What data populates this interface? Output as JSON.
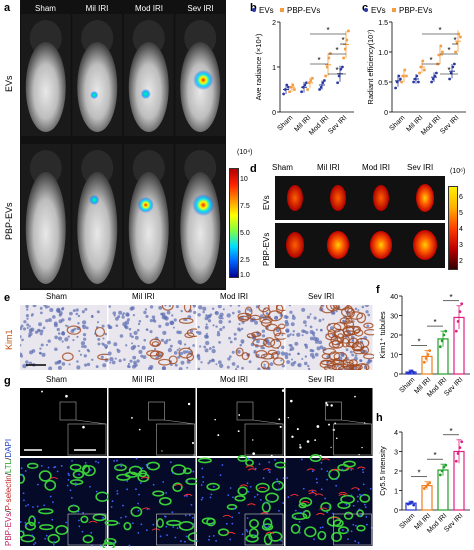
{
  "panels": {
    "a": {
      "label": "a",
      "columns": [
        "Sham",
        "Mil IRI",
        "Mod IRI",
        "Sev IRI"
      ],
      "rows": [
        "EVs",
        "PBP-EVs"
      ],
      "colorbar": {
        "unit": "(10⁴)",
        "ticks": [
          "10",
          "7.5",
          "5.0",
          "2.5",
          "1.0"
        ]
      }
    },
    "d": {
      "label": "d",
      "columns": [
        "Sham",
        "Mil IRI",
        "Mod IRI",
        "Sev IRI"
      ],
      "rows": [
        "EVs",
        "PBP-EVs"
      ],
      "colorbar": {
        "unit": "(10⁶)",
        "ticks": [
          "6",
          "5",
          "4",
          "3",
          "2"
        ]
      }
    },
    "e": {
      "label": "e",
      "columns": [
        "Sham",
        "Mil IRI",
        "Mod IRI",
        "Sev IRI"
      ],
      "row": "Kim1"
    },
    "g": {
      "label": "g",
      "columns": [
        "Sham",
        "Mil IRI",
        "Mod IRI",
        "Sev IRI"
      ],
      "row_parts": [
        "PBP-EVs",
        "/",
        "P-selectin",
        "/",
        "LTL",
        "/",
        "DAPI"
      ]
    }
  },
  "colors": {
    "evs": "#2b3aa0",
    "pbp": "#f39c40",
    "sham": "#2233cc",
    "mil": "#f08020",
    "mod": "#22a02a",
    "sev": "#e02080",
    "colorbar": [
      "#b00000",
      "#ff2000",
      "#ff9000",
      "#ffff00",
      "#80ff40",
      "#00e0ff",
      "#0060ff",
      "#000090"
    ]
  },
  "chart_data": [
    {
      "id": "b",
      "label": "b",
      "type": "scatter",
      "categories": [
        "Sham",
        "Mil IRI",
        "Mod IRI",
        "Sev IRI"
      ],
      "ylabel": "Ave radiance (×10⁴)",
      "ylim": [
        0,
        2
      ],
      "yticks": [
        "0",
        "1",
        "2"
      ],
      "series": [
        {
          "name": "EVs",
          "means": [
            0.5,
            0.55,
            0.6,
            0.85
          ],
          "errors": [
            0.1,
            0.12,
            0.1,
            0.18
          ],
          "points": [
            [
              0.4,
              0.5,
              0.6,
              0.55
            ],
            [
              0.45,
              0.55,
              0.6,
              0.65
            ],
            [
              0.5,
              0.55,
              0.65,
              0.7
            ],
            [
              0.65,
              0.8,
              0.95,
              1.0
            ]
          ]
        },
        {
          "name": "PBP-EVs",
          "means": [
            0.55,
            0.65,
            1.05,
            1.5
          ],
          "errors": [
            0.1,
            0.12,
            0.25,
            0.3
          ],
          "points": [
            [
              0.45,
              0.55,
              0.6,
              0.5
            ],
            [
              0.5,
              0.65,
              0.7,
              0.75
            ],
            [
              0.8,
              1.0,
              1.2,
              1.3
            ],
            [
              1.2,
              1.4,
              1.6,
              1.8
            ]
          ]
        }
      ],
      "significance": [
        {
          "i": 2,
          "j": 3,
          "text": "*"
        },
        {
          "i": 1,
          "j": 2,
          "text": "*"
        },
        {
          "i": 2,
          "j": 3,
          "text": "*"
        },
        {
          "i": 3,
          "j": 3,
          "text": "*"
        },
        {
          "i": 1,
          "j": 3,
          "text": "*"
        }
      ]
    },
    {
      "id": "c",
      "label": "c",
      "type": "scatter",
      "categories": [
        "Sham",
        "Mil IRI",
        "Mod IRI",
        "Sev IRI"
      ],
      "ylabel": "Radiant efficiency(10⁷)",
      "ylim": [
        0,
        1.5
      ],
      "yticks": [
        "0",
        "0.5",
        "1.0",
        "1.5"
      ],
      "series": [
        {
          "name": "EVs",
          "means": [
            0.52,
            0.55,
            0.58,
            0.68
          ],
          "errors": [
            0.1,
            0.08,
            0.08,
            0.12
          ],
          "points": [
            [
              0.4,
              0.5,
              0.6,
              0.55
            ],
            [
              0.5,
              0.55,
              0.6,
              0.5
            ],
            [
              0.5,
              0.55,
              0.6,
              0.65
            ],
            [
              0.55,
              0.65,
              0.75,
              0.8
            ]
          ]
        },
        {
          "name": "PBP-EVs",
          "means": [
            0.6,
            0.75,
            0.95,
            1.18
          ],
          "errors": [
            0.1,
            0.1,
            0.15,
            0.18
          ],
          "points": [
            [
              0.5,
              0.6,
              0.7,
              0.6
            ],
            [
              0.65,
              0.75,
              0.85,
              0.7
            ],
            [
              0.8,
              0.95,
              1.1,
              1.0
            ],
            [
              1.0,
              1.15,
              1.3,
              1.25
            ]
          ]
        }
      ],
      "significance": [
        {
          "i": 2,
          "j": 3,
          "text": "*"
        },
        {
          "i": 1,
          "j": 2,
          "text": "*"
        },
        {
          "i": 2,
          "j": 3,
          "text": "*"
        },
        {
          "i": 3,
          "j": 3,
          "text": "*"
        },
        {
          "i": 1,
          "j": 3,
          "text": "*"
        }
      ]
    },
    {
      "id": "f",
      "label": "f",
      "type": "bar",
      "categories": [
        "Sham",
        "Mil IRI",
        "Mod IRI",
        "Sev IRI"
      ],
      "ylabel": "Kim1⁺ tubules",
      "ylim": [
        0,
        40
      ],
      "yticks": [
        "0",
        "10",
        "20",
        "30",
        "40"
      ],
      "values": [
        1,
        9,
        18,
        29
      ],
      "errors": [
        1,
        3,
        4,
        6
      ],
      "points": [
        [
          0.5,
          1,
          1.5,
          0.8
        ],
        [
          6,
          8,
          10,
          12
        ],
        [
          14,
          17,
          20,
          22
        ],
        [
          22,
          27,
          32,
          36
        ]
      ],
      "significance": [
        {
          "i": 0,
          "j": 1,
          "text": "*"
        },
        {
          "i": 1,
          "j": 2,
          "text": "*"
        },
        {
          "i": 2,
          "j": 3,
          "text": "*"
        }
      ]
    },
    {
      "id": "h",
      "label": "h",
      "type": "bar",
      "categories": [
        "Sham",
        "Mil IRI",
        "Mod IRI",
        "Sev IRI"
      ],
      "ylabel": "Cy5.5 Intensity",
      "ylim": [
        0,
        4
      ],
      "yticks": [
        "0",
        "1",
        "2",
        "3",
        "4"
      ],
      "values": [
        0.35,
        1.25,
        2.05,
        3.0
      ],
      "errors": [
        0.1,
        0.2,
        0.3,
        0.6
      ],
      "points": [
        [
          0.3,
          0.35,
          0.4,
          0.25
        ],
        [
          1.1,
          1.2,
          1.3,
          1.4
        ],
        [
          1.8,
          2.0,
          2.2,
          2.3
        ],
        [
          2.5,
          2.9,
          3.2,
          3.5
        ]
      ],
      "significance": [
        {
          "i": 0,
          "j": 1,
          "text": "*"
        },
        {
          "i": 1,
          "j": 2,
          "text": "*"
        },
        {
          "i": 2,
          "j": 3,
          "text": "*"
        }
      ]
    }
  ]
}
